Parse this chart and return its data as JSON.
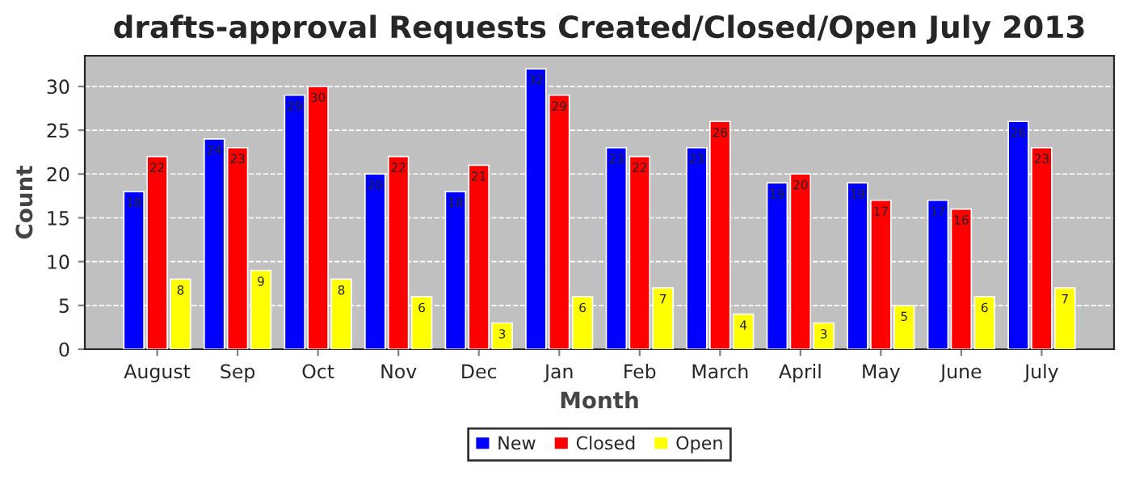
{
  "chart_data": {
    "type": "bar",
    "title": "drafts-approval Requests Created/Closed/Open July 2013",
    "xlabel": "Month",
    "ylabel": "Count",
    "categories": [
      "August",
      "Sep",
      "Oct",
      "Nov",
      "Dec",
      "Jan",
      "Feb",
      "March",
      "April",
      "May",
      "June",
      "July"
    ],
    "series": [
      {
        "name": "New",
        "color": "#0000ff",
        "values": [
          18,
          24,
          29,
          20,
          18,
          32,
          23,
          23,
          19,
          19,
          17,
          26
        ]
      },
      {
        "name": "Closed",
        "color": "#ff0000",
        "values": [
          22,
          23,
          30,
          22,
          21,
          29,
          22,
          26,
          20,
          17,
          16,
          23
        ]
      },
      {
        "name": "Open",
        "color": "#ffff00",
        "values": [
          8,
          9,
          8,
          6,
          3,
          6,
          7,
          4,
          3,
          5,
          6,
          7
        ]
      }
    ],
    "ylim": [
      0,
      33.5
    ],
    "yticks": [
      0,
      5,
      10,
      15,
      20,
      25,
      30
    ],
    "grid": "y",
    "legend": "bottom",
    "data_labels": true
  }
}
